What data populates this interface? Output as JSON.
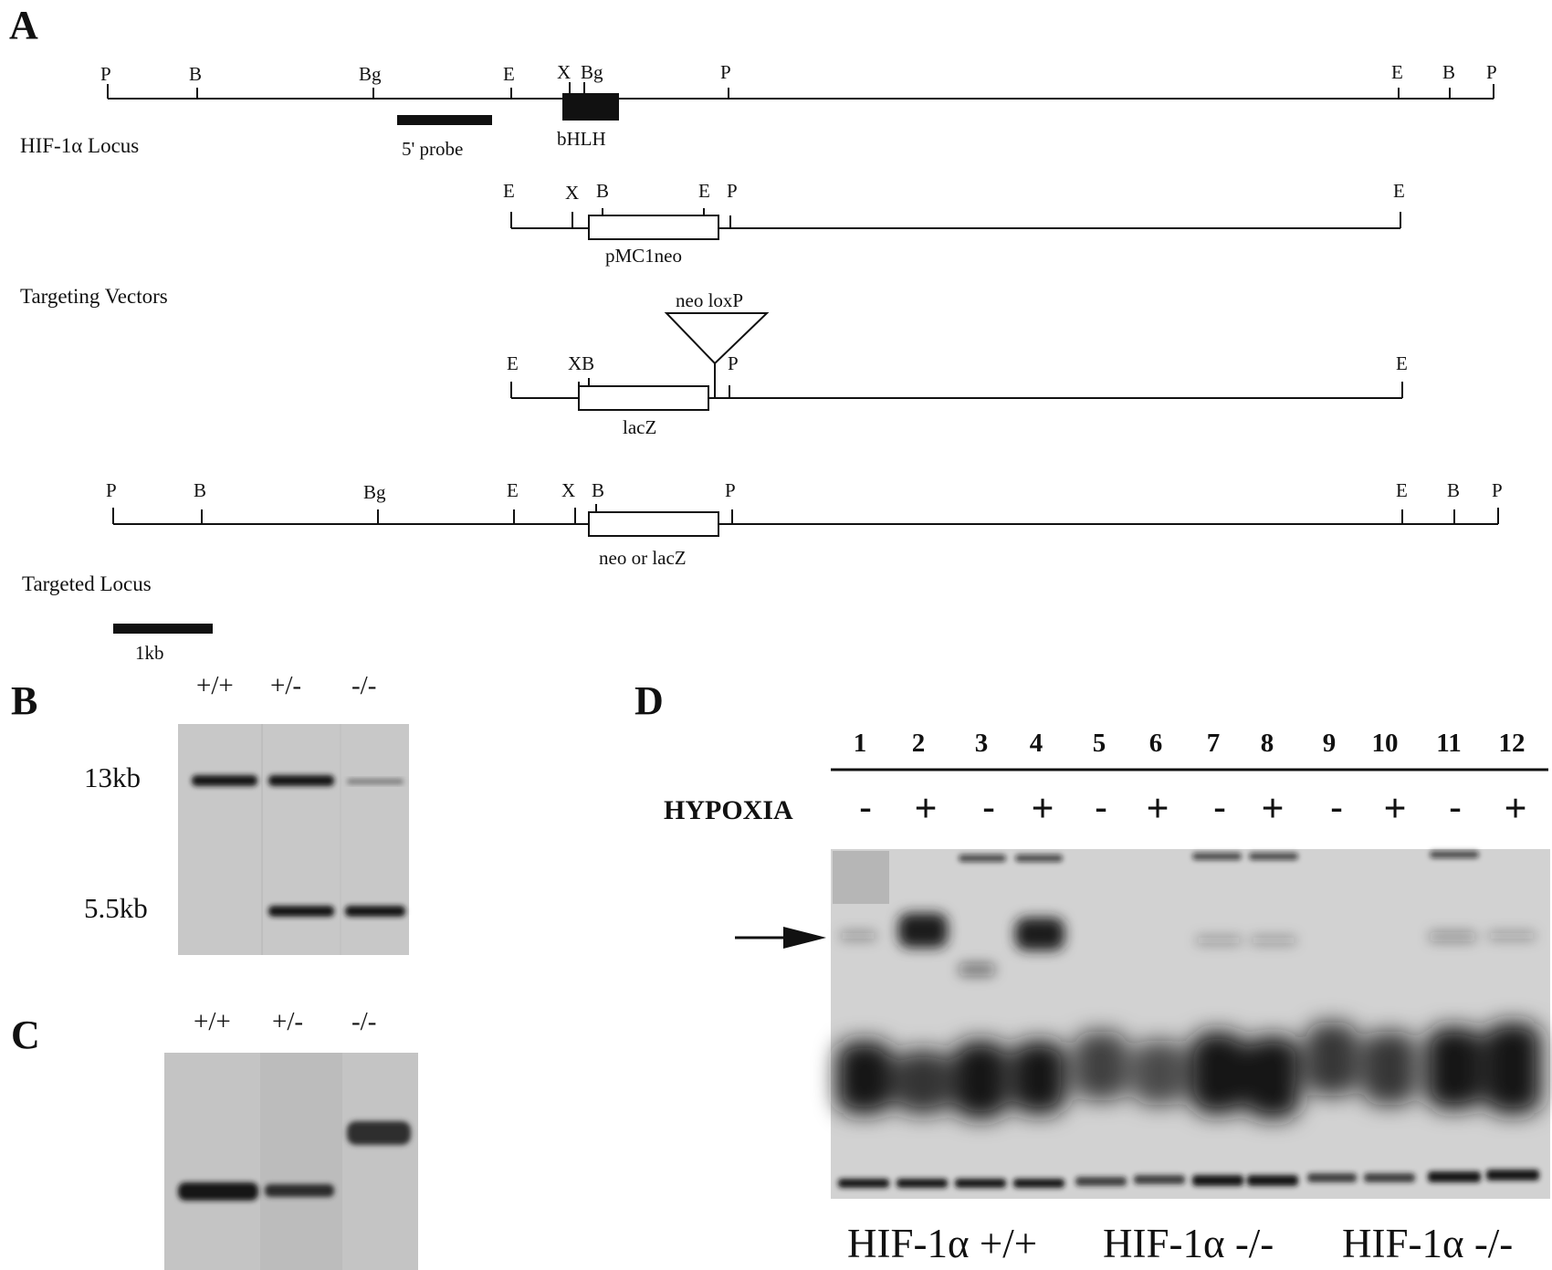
{
  "panels": {
    "a": "A",
    "b": "B",
    "c": "C",
    "d": "D"
  },
  "panel_a": {
    "sites_native": [
      "P",
      "B",
      "Bg",
      "E",
      "X",
      "Bg",
      "P",
      "E",
      "B",
      "P"
    ],
    "probe_label": "5' probe",
    "bhlh_label": "bHLH",
    "hif_locus_label": "HIF-1α Locus",
    "vec1_sites": [
      "E",
      "X",
      "B",
      "E",
      "P",
      "E"
    ],
    "vec1_box_label": "pMC1neo",
    "targeting_label": "Targeting Vectors",
    "neo_loxp_label": "neo loxP",
    "vec2_sites": [
      "E",
      "XB",
      "P",
      "E"
    ],
    "vec2_box_label": "lacZ",
    "targeted_sites": [
      "P",
      "B",
      "Bg",
      "E",
      "X",
      "B",
      "P",
      "E",
      "B",
      "P"
    ],
    "targeted_box_label": "neo or lacZ",
    "targeted_locus_label": "Targeted Locus",
    "scale_label": "1kb"
  },
  "panel_b": {
    "lanes": [
      "+/+",
      "+/-",
      "-/-"
    ],
    "bands": [
      "13kb",
      "5.5kb"
    ]
  },
  "panel_c": {
    "lanes": [
      "+/+",
      "+/-",
      "-/-"
    ]
  },
  "panel_d": {
    "lanes": [
      "1",
      "2",
      "3",
      "4",
      "5",
      "6",
      "7",
      "8",
      "9",
      "10",
      "11",
      "12"
    ],
    "hypoxia_label": "HYPOXIA",
    "hypoxia": [
      "-",
      "+",
      "-",
      "+",
      "-",
      "+",
      "-",
      "+",
      "-",
      "+",
      "-",
      "+"
    ],
    "groups": [
      "HIF-1α +/+",
      "HIF-1α -/-",
      "HIF-1α -/-"
    ]
  },
  "colors": {
    "ink": "#111111",
    "gel_bg": "#cfcfcf",
    "band": "#141414"
  }
}
